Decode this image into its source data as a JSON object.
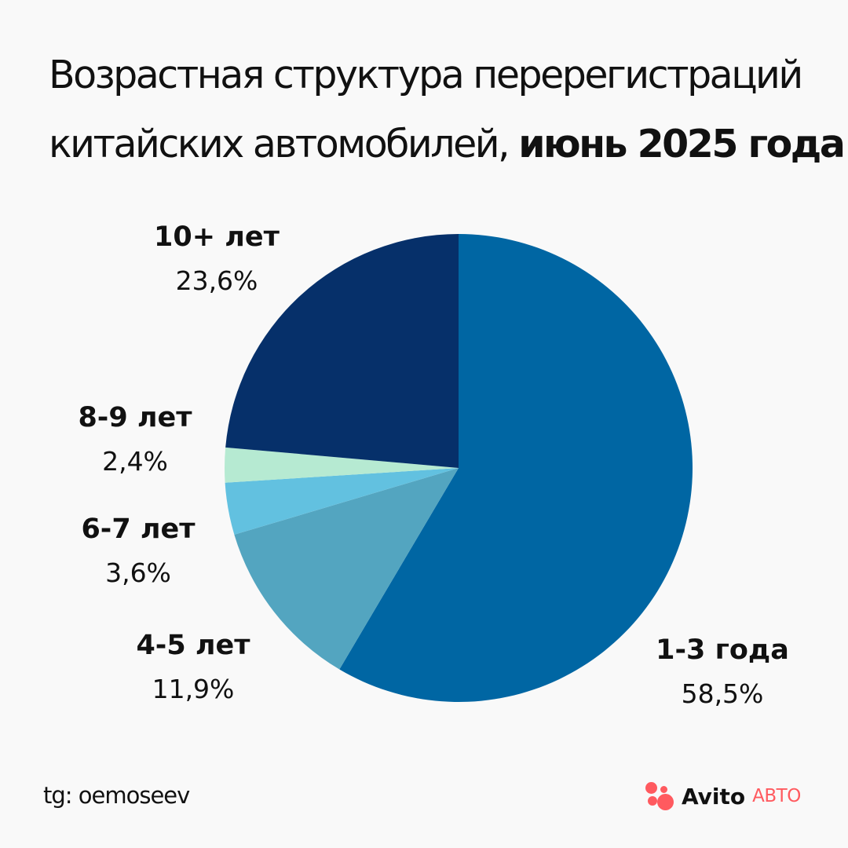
{
  "title": {
    "line1": "Возрастная структура перерегистраций",
    "line2_regular": "китайских автомобилей, ",
    "line2_bold": "июнь 2025 года"
  },
  "chart_data": {
    "type": "pie",
    "slices": [
      {
        "label": "1-3 года",
        "value": 58.5,
        "value_label": "58,5%",
        "color": "#0066a3"
      },
      {
        "label": "4-5 лет",
        "value": 11.9,
        "value_label": "11,9%",
        "color": "#53a5c0"
      },
      {
        "label": "6-7 лет",
        "value": 3.6,
        "value_label": "3,6%",
        "color": "#62c1e0"
      },
      {
        "label": "8-9 лет",
        "value": 2.4,
        "value_label": "2,4%",
        "color": "#b6ead2"
      },
      {
        "label": "10+ лет",
        "value": 23.6,
        "value_label": "23,6%",
        "color": "#06306a"
      }
    ],
    "start": "12 o'clock",
    "direction": "clockwise",
    "legend": "none"
  },
  "footer": {
    "source": "tg: oemoseev",
    "logo_brand": "Avito",
    "logo_sub": "АВТО"
  },
  "colors": {
    "background": "#f9f9f9",
    "logo_accent": "#ff5a5f"
  }
}
